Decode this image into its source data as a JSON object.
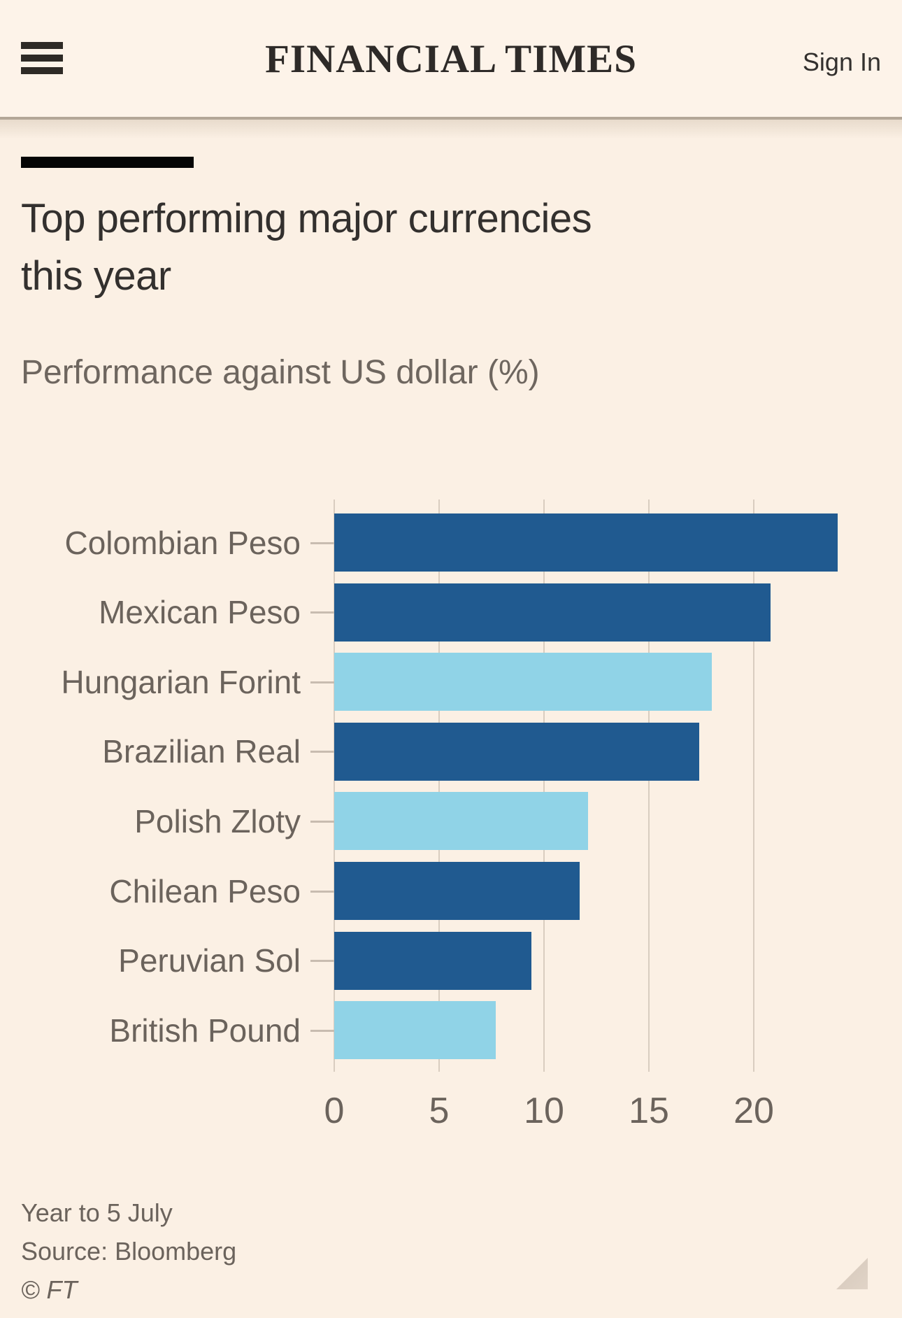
{
  "header": {
    "masthead": "FINANCIAL TIMES",
    "sign_in_label": "Sign In",
    "menu_icon": "hamburger-icon"
  },
  "article": {
    "title": "Top performing major currencies this year",
    "subtitle": "Performance against US dollar (%)"
  },
  "chart_data": {
    "type": "bar",
    "orientation": "horizontal",
    "title": "Top performing major currencies this year",
    "subtitle": "Performance against US dollar (%)",
    "xlabel": "Performance against US dollar (%)",
    "ylabel": "",
    "categories": [
      "Colombian Peso",
      "Mexican Peso",
      "Hungarian Forint",
      "Brazilian Real",
      "Polish Zloty",
      "Chilean Peso",
      "Peruvian Sol",
      "British Pound"
    ],
    "values": [
      24.0,
      20.8,
      18.0,
      17.4,
      12.1,
      11.7,
      9.4,
      7.7
    ],
    "bar_palette": [
      "dark",
      "dark",
      "light",
      "dark",
      "light",
      "dark",
      "dark",
      "light"
    ],
    "xticks": [
      0,
      5,
      10,
      15,
      20
    ],
    "xlim": [
      0,
      25.6
    ],
    "grid": "vertical",
    "legend": "none",
    "colors": {
      "dark": "#205A90",
      "light": "#90D3E7"
    }
  },
  "footnote": {
    "timeframe": "Year to 5 July",
    "source": "Source: Bloomberg",
    "copyright": "© FT"
  }
}
